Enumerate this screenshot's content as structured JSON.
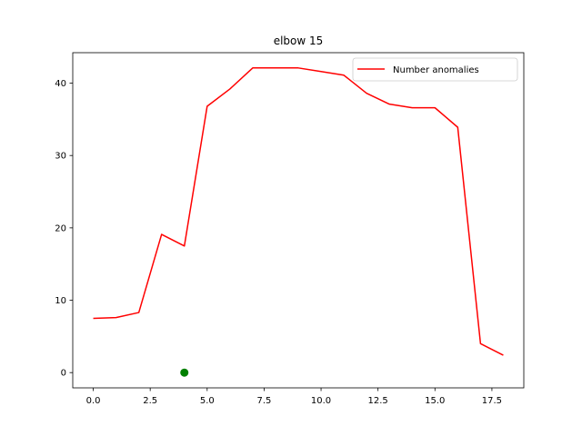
{
  "chart_data": {
    "type": "line",
    "title": "elbow 15",
    "xlabel": "",
    "ylabel": "",
    "xlim": [
      -0.9,
      18.9
    ],
    "ylim": [
      -2.11,
      44.21
    ],
    "xticks": [
      0,
      2.5,
      5,
      7.5,
      10,
      12.5,
      15,
      17.5
    ],
    "xtick_labels": [
      "0.0",
      "2.5",
      "5.0",
      "7.5",
      "10.0",
      "12.5",
      "15.0",
      "17.5"
    ],
    "yticks": [
      0,
      10,
      20,
      30,
      40
    ],
    "ytick_labels": [
      "0",
      "10",
      "20",
      "30",
      "40"
    ],
    "grid": false,
    "legend_position": "upper right",
    "series": [
      {
        "name": "Number anomalies",
        "color": "#ff0000",
        "x": [
          0,
          1,
          2,
          3,
          4,
          5,
          6,
          7,
          8,
          9,
          10,
          11,
          12,
          13,
          14,
          15,
          16,
          17,
          18
        ],
        "y": [
          7.5,
          7.6,
          8.3,
          19.1,
          17.5,
          36.8,
          39.2,
          42.1,
          42.1,
          42.1,
          41.6,
          41.1,
          38.6,
          37.1,
          36.6,
          36.6,
          33.9,
          4.0,
          2.4
        ]
      }
    ],
    "markers": [
      {
        "x": 4,
        "y": 0,
        "color": "#008000"
      }
    ]
  }
}
